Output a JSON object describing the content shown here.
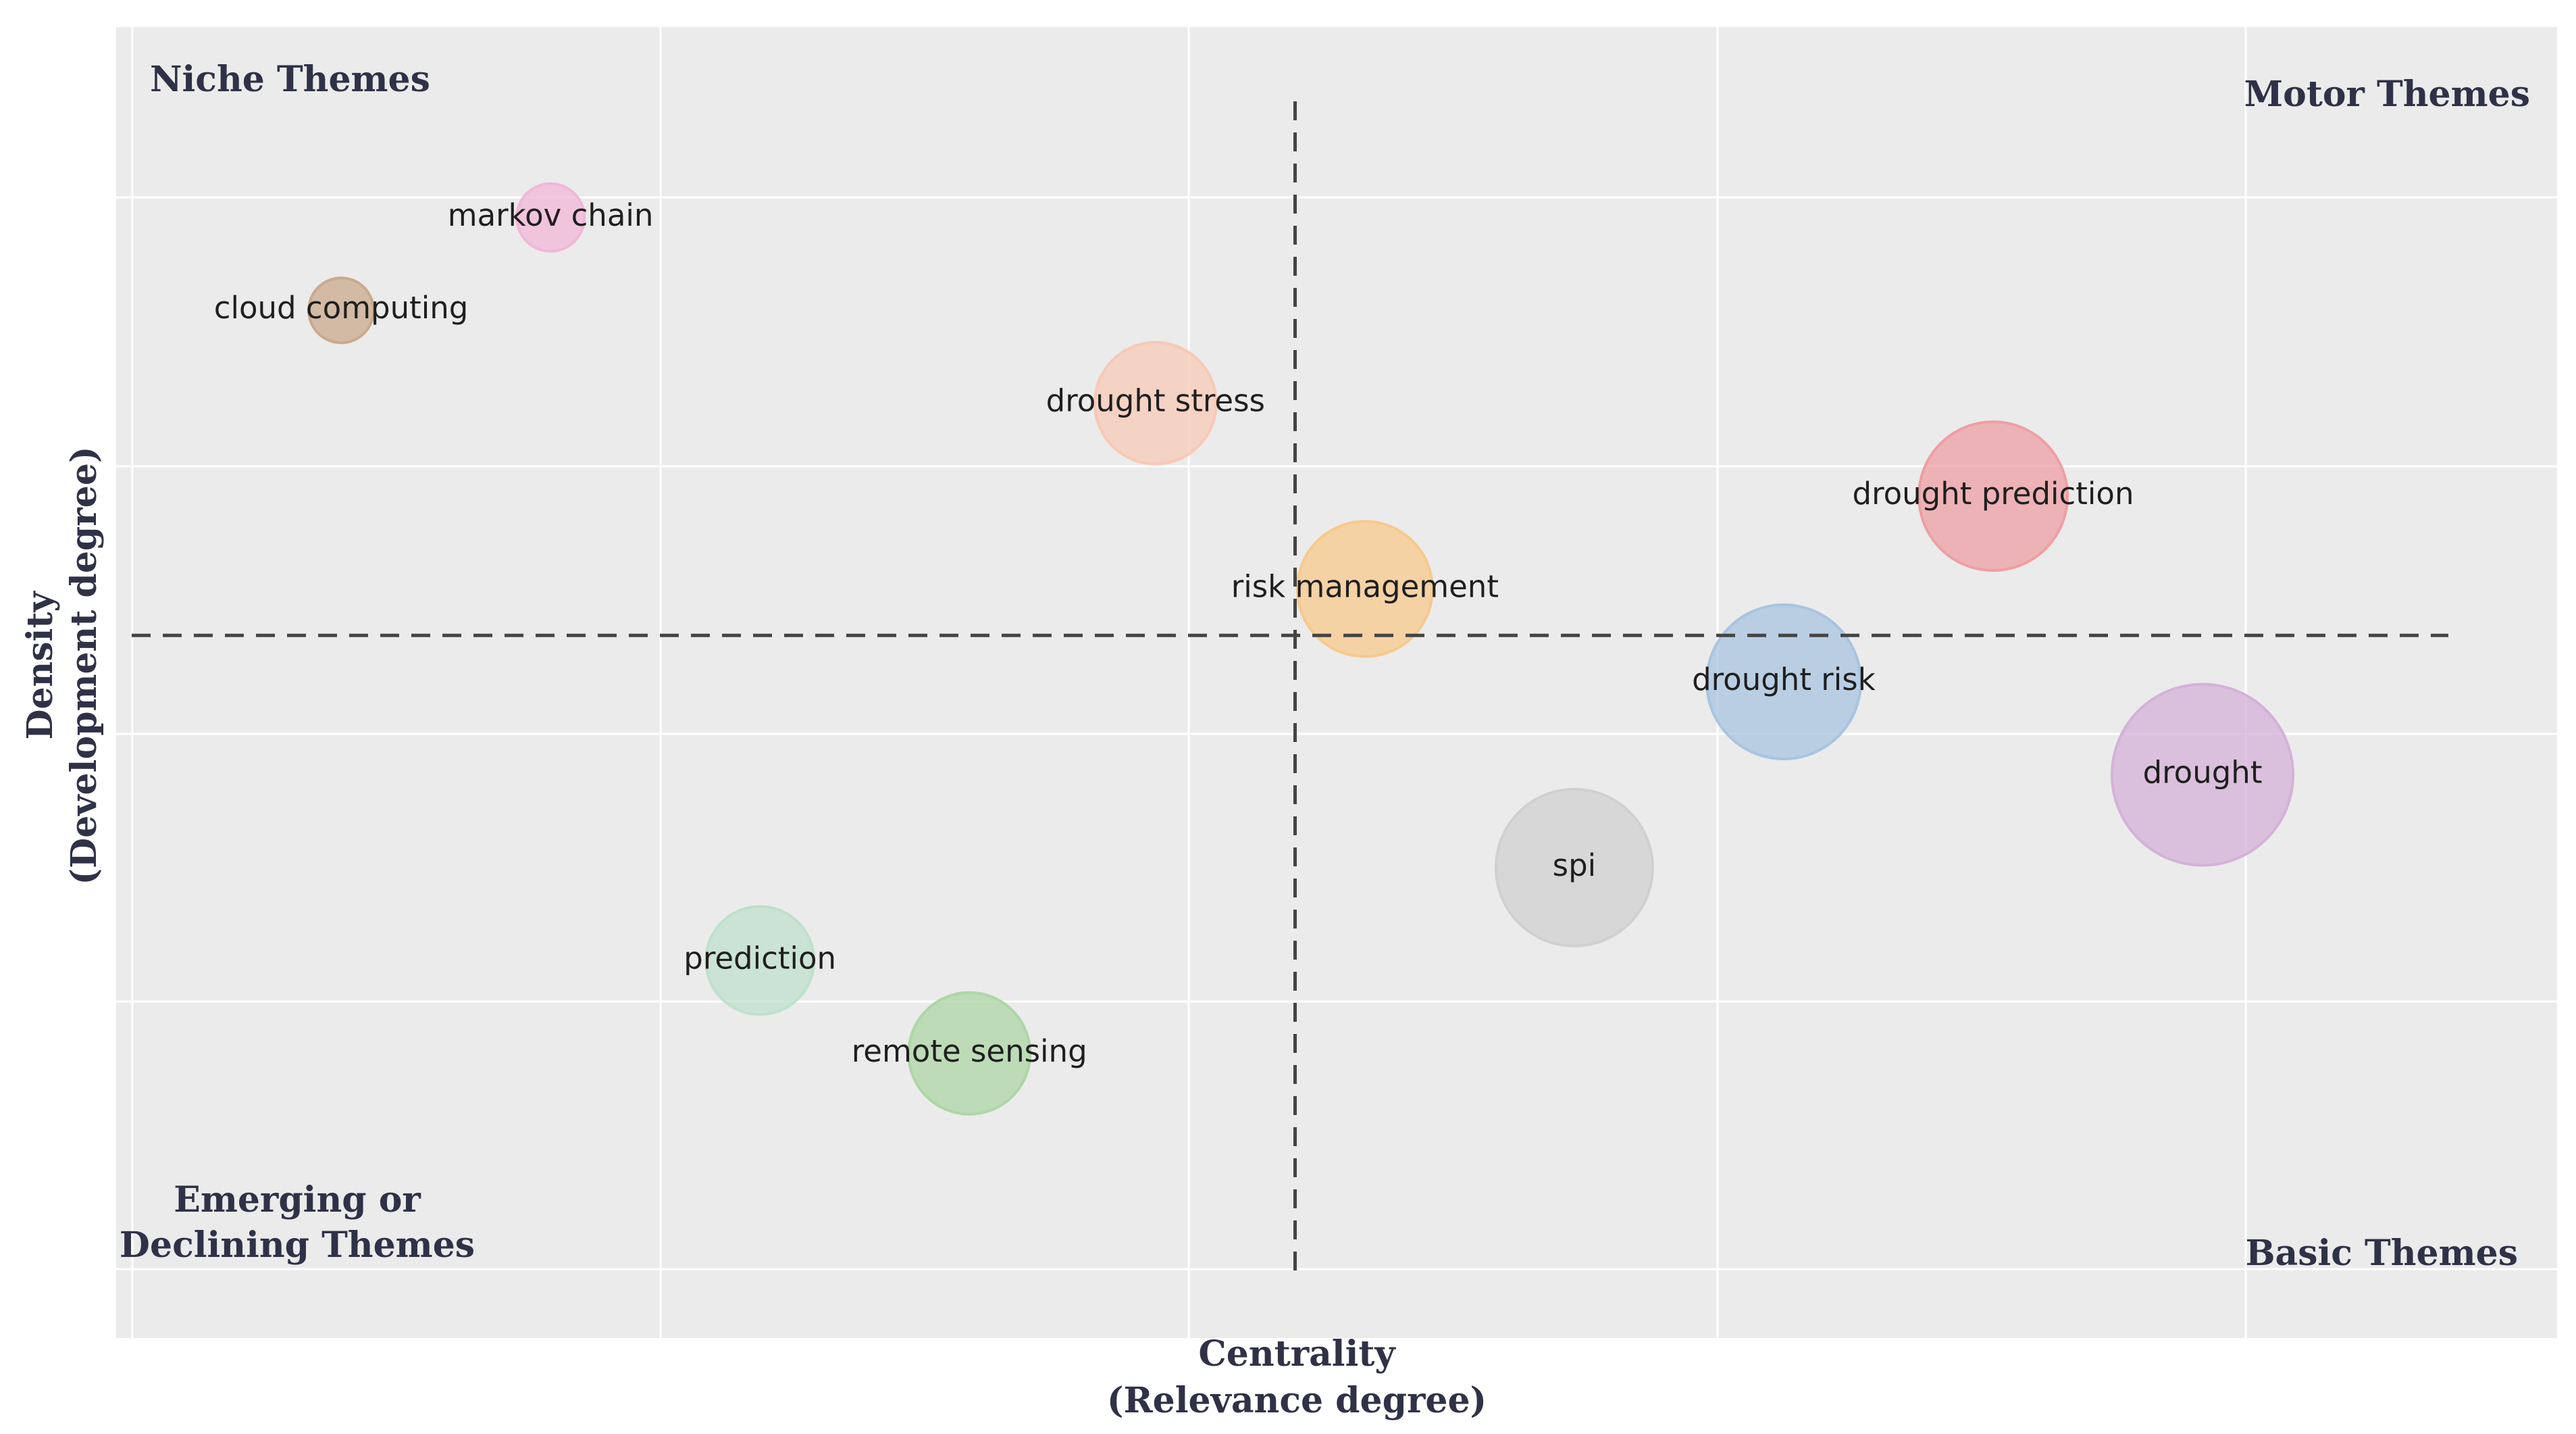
{
  "chart_data": {
    "type": "scatter",
    "encoding": "bubble",
    "title": "",
    "xlabel": [
      "Centrality",
      "(Relevance degree)"
    ],
    "ylabel": [
      "Density",
      "(Development degree)"
    ],
    "grid": true,
    "tick_labels": false,
    "quadrants": {
      "top_left": "Niche Themes",
      "top_right": "Motor Themes",
      "bottom_left": [
        "Emerging or",
        "Declining Themes"
      ],
      "bottom_right": "Basic Themes"
    },
    "series": [
      {
        "name": "markov chain",
        "x": 0.18,
        "y": 0.9,
        "size": 0.1,
        "color": "#f1b7d8"
      },
      {
        "name": "cloud computing",
        "x": 0.09,
        "y": 0.82,
        "size": 0.09,
        "color": "#caa98d"
      },
      {
        "name": "drought stress",
        "x": 0.44,
        "y": 0.74,
        "size": 0.3,
        "color": "#f7c9b7"
      },
      {
        "name": "drought prediction",
        "x": 0.8,
        "y": 0.66,
        "size": 0.4,
        "color": "#ee9fa3"
      },
      {
        "name": "risk management",
        "x": 0.53,
        "y": 0.58,
        "size": 0.35,
        "color": "#f7c98c"
      },
      {
        "name": "drought risk",
        "x": 0.71,
        "y": 0.5,
        "size": 0.42,
        "color": "#a8c4e0"
      },
      {
        "name": "drought",
        "x": 0.89,
        "y": 0.42,
        "size": 0.52,
        "color": "#d4b2d8"
      },
      {
        "name": "spi",
        "x": 0.62,
        "y": 0.34,
        "size": 0.43,
        "color": "#d0d0d0"
      },
      {
        "name": "prediction",
        "x": 0.27,
        "y": 0.26,
        "size": 0.25,
        "color": "#bfe0cc"
      },
      {
        "name": "remote sensing",
        "x": 0.36,
        "y": 0.18,
        "size": 0.3,
        "color": "#aed6a6"
      }
    ],
    "reference_lines": {
      "x": 0.5,
      "y": 0.54
    },
    "xlim": [
      0,
      1
    ],
    "ylim": [
      0,
      1
    ]
  }
}
